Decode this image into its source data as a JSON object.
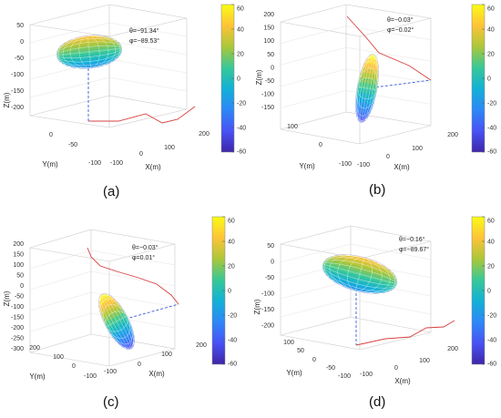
{
  "chart_data": [
    {
      "type": "scatter",
      "panel_label": "(a)",
      "annotation": [
        "θ=−91.34°",
        "φ=−89.53°"
      ],
      "xlabel": "X(m)",
      "ylabel": "Y(m)",
      "zlabel": "Z(m)",
      "x_ticks": [
        "-100",
        "0",
        "100",
        "200"
      ],
      "y_ticks": [
        "0",
        "-50",
        "-100"
      ],
      "z_ticks": [
        "50",
        "0",
        "-50",
        "-100",
        "-150",
        "-200"
      ],
      "colorbar": {
        "ticks": [
          "60",
          "40",
          "20",
          "0",
          "-20",
          "-40",
          "-60"
        ],
        "range": [
          -60,
          60
        ]
      },
      "ellipsoid_orientation": "horizontal",
      "trajectory_color": "#d94040",
      "projection_line_color": "#3b5bdb"
    },
    {
      "type": "scatter",
      "panel_label": "(b)",
      "annotation": [
        "θ=−0.03°",
        "φ=−0.02°"
      ],
      "xlabel": "X(m)",
      "ylabel": "Y(m)",
      "zlabel": "Z(m)",
      "x_ticks": [
        "-100",
        "0",
        "100",
        "200"
      ],
      "y_ticks": [
        "100",
        "0",
        "-100"
      ],
      "z_ticks": [
        "200",
        "150",
        "100",
        "50",
        "0",
        "-50",
        "-100",
        "-150"
      ],
      "colorbar": {
        "ticks": [
          "60",
          "40",
          "20",
          "0",
          "-20",
          "-40",
          "-60"
        ],
        "range": [
          -60,
          60
        ]
      },
      "ellipsoid_orientation": "vertical",
      "trajectory_color": "#d94040",
      "projection_line_color": "#3b5bdb"
    },
    {
      "type": "scatter",
      "panel_label": "(c)",
      "annotation": [
        "θ=−0.03°",
        "φ=0.01°"
      ],
      "xlabel": "X(m)",
      "ylabel": "Y(m)",
      "zlabel": "Z(m)",
      "x_ticks": [
        "-100",
        "0",
        "100",
        "200"
      ],
      "y_ticks": [
        "200",
        "100",
        "0",
        "-100"
      ],
      "z_ticks": [
        "200",
        "150",
        "100",
        "50",
        "0",
        "-50",
        "-100",
        "-150",
        "-200",
        "-250",
        "-300"
      ],
      "colorbar": {
        "ticks": [
          "60",
          "40",
          "20",
          "0",
          "-20",
          "-40",
          "-60"
        ],
        "range": [
          -60,
          60
        ]
      },
      "ellipsoid_orientation": "vertical",
      "trajectory_color": "#d94040",
      "projection_line_color": "#3b5bdb"
    },
    {
      "type": "scatter",
      "panel_label": "(d)",
      "annotation": [
        "θ=−0.16°",
        "φ=−89.67°"
      ],
      "xlabel": "X(m)",
      "ylabel": "Y(m)",
      "zlabel": "Z(m)",
      "x_ticks": [
        "-100",
        "0",
        "100",
        "200"
      ],
      "y_ticks": [
        "100",
        "50",
        "0",
        "-50",
        "-100"
      ],
      "z_ticks": [
        "50",
        "0",
        "-50",
        "-100",
        "-150",
        "-200"
      ],
      "colorbar": {
        "ticks": [
          "60",
          "40",
          "20",
          "0",
          "-20",
          "-40",
          "-60"
        ],
        "range": [
          -60,
          60
        ]
      },
      "ellipsoid_orientation": "horizontal",
      "trajectory_color": "#d94040",
      "projection_line_color": "#3b5bdb"
    }
  ]
}
